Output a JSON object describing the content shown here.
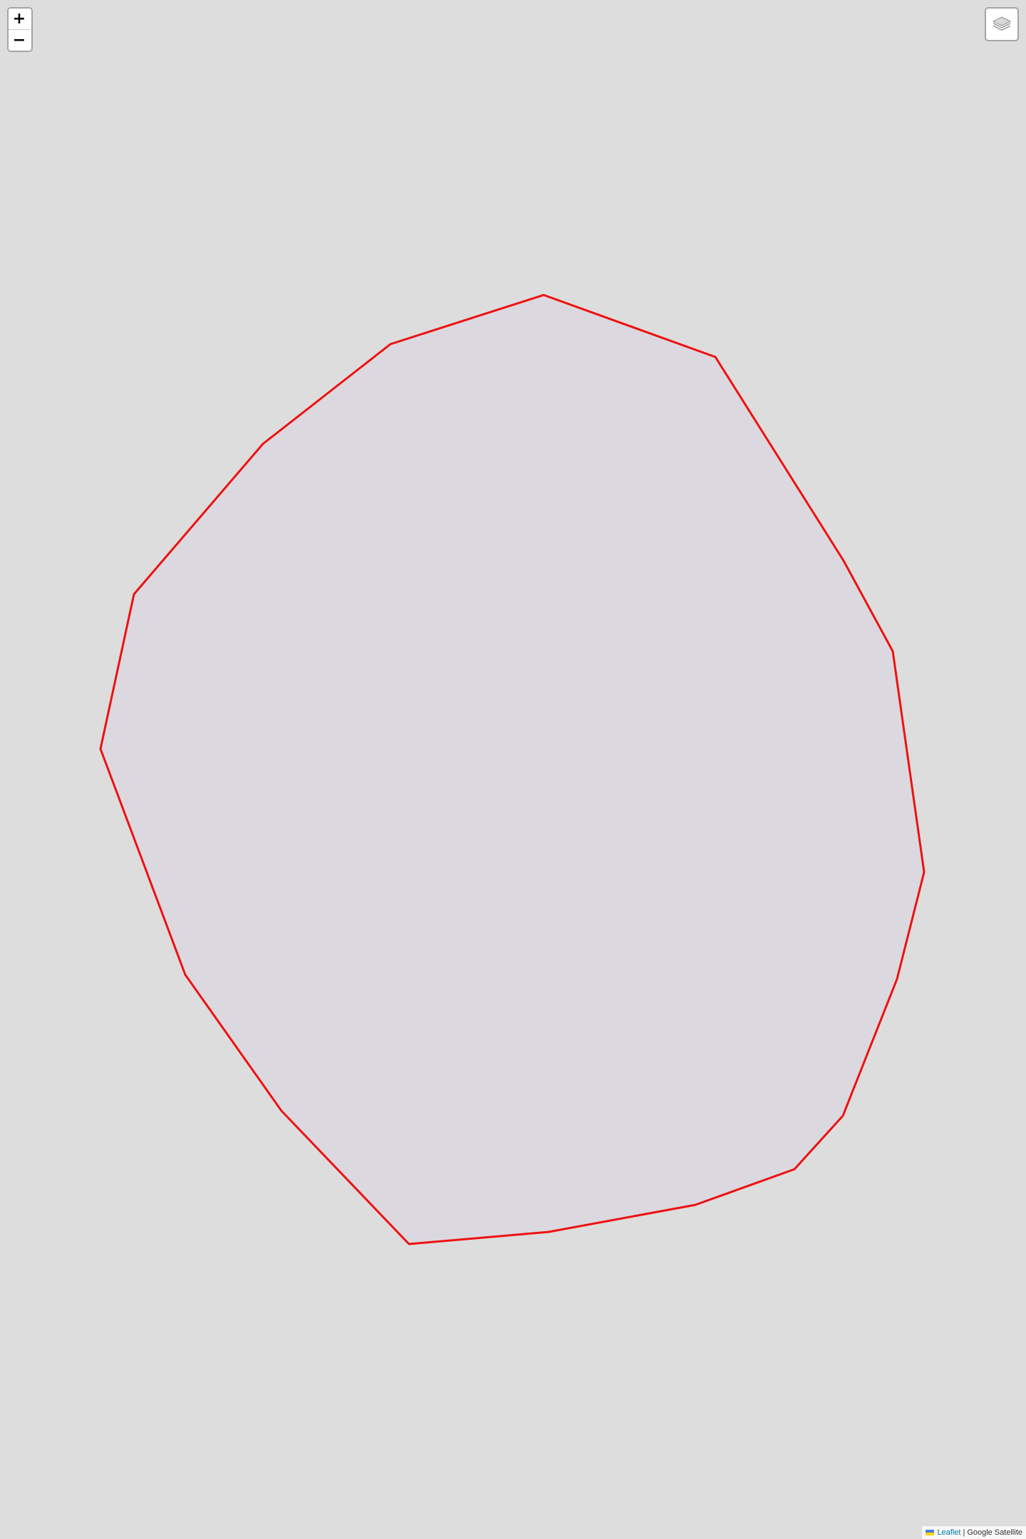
{
  "map": {
    "background_color": "#dddddd"
  },
  "zoom": {
    "in_label": "+",
    "out_label": "−"
  },
  "layers": {
    "icon": "layers-icon"
  },
  "polygon": {
    "stroke_color": "#ee1111",
    "fill_color": "#d8d6e0"
  },
  "attribution": {
    "flag_icon": "ukraine-flag-icon",
    "leaflet_label": "Leaflet",
    "separator": "|",
    "provider_label": "Google Satellite"
  }
}
